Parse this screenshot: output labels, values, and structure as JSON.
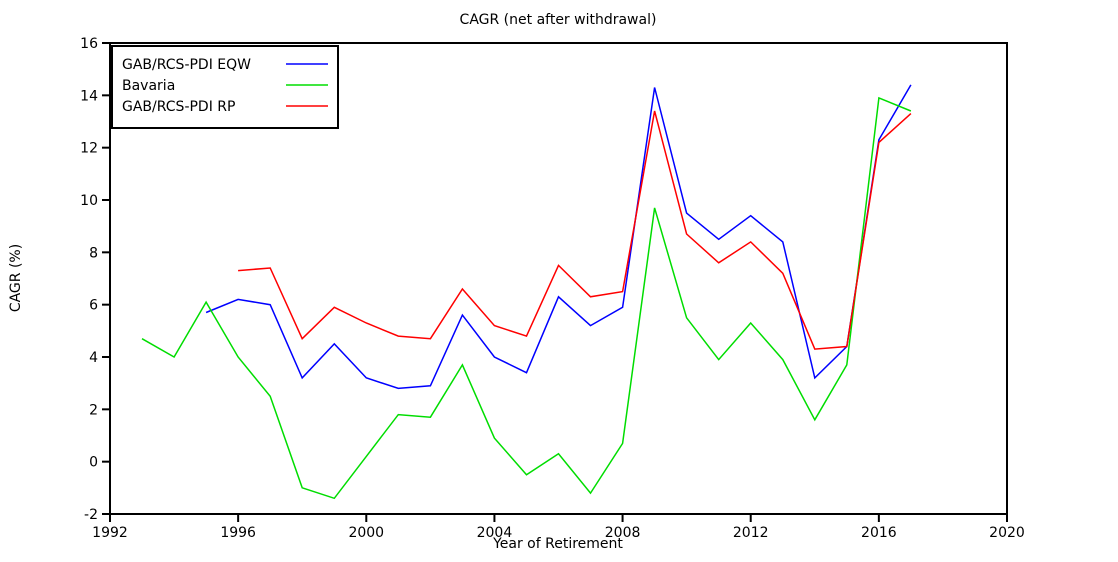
{
  "chart_data": {
    "type": "line",
    "title": "CAGR (net after withdrawal)",
    "xlabel": "Year of Retirement",
    "ylabel": "CAGR (%)",
    "xlim": [
      1992,
      2020
    ],
    "ylim": [
      -2,
      16
    ],
    "xticks": [
      1992,
      1996,
      2000,
      2004,
      2008,
      2012,
      2016,
      2020
    ],
    "yticks": [
      -2,
      0,
      2,
      4,
      6,
      8,
      10,
      12,
      14,
      16
    ],
    "grid": false,
    "legend_position": "top-left",
    "frame_color": "#000000",
    "series": [
      {
        "name": "GAB/RCS-PDI EQW",
        "color": "#0000ff",
        "x": [
          1995,
          1996,
          1997,
          1998,
          1999,
          2000,
          2001,
          2002,
          2003,
          2004,
          2005,
          2006,
          2007,
          2008,
          2009,
          2010,
          2011,
          2012,
          2013,
          2014,
          2015,
          2016,
          2017
        ],
        "y": [
          5.7,
          6.2,
          6.0,
          3.2,
          4.5,
          3.2,
          2.8,
          2.9,
          5.6,
          4.0,
          3.4,
          6.3,
          5.2,
          5.9,
          14.3,
          9.5,
          8.5,
          9.4,
          8.4,
          3.2,
          4.4,
          12.3,
          14.4
        ]
      },
      {
        "name": "Bavaria",
        "color": "#00dd00",
        "x": [
          1993,
          1994,
          1995,
          1996,
          1997,
          1998,
          1999,
          2000,
          2001,
          2002,
          2003,
          2004,
          2005,
          2006,
          2007,
          2008,
          2009,
          2010,
          2011,
          2012,
          2013,
          2014,
          2015,
          2016,
          2017
        ],
        "y": [
          4.7,
          4.0,
          6.1,
          4.0,
          2.5,
          -1.0,
          -1.4,
          0.2,
          1.8,
          1.7,
          3.7,
          0.9,
          -0.5,
          0.3,
          -1.2,
          0.7,
          9.7,
          5.5,
          3.9,
          5.3,
          3.9,
          1.6,
          3.7,
          13.9,
          13.4
        ]
      },
      {
        "name": "GAB/RCS-PDI RP",
        "color": "#ff0000",
        "x": [
          1996,
          1997,
          1998,
          1999,
          2000,
          2001,
          2002,
          2003,
          2004,
          2005,
          2006,
          2007,
          2008,
          2009,
          2010,
          2011,
          2012,
          2013,
          2014,
          2015,
          2016,
          2017
        ],
        "y": [
          7.3,
          7.4,
          4.7,
          5.9,
          5.3,
          4.8,
          4.7,
          6.6,
          5.2,
          4.8,
          7.5,
          6.3,
          6.5,
          13.4,
          8.7,
          7.6,
          8.4,
          7.2,
          4.3,
          4.4,
          12.2,
          13.3
        ]
      }
    ]
  }
}
